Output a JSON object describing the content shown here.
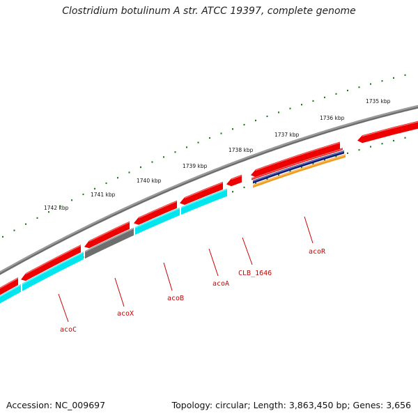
{
  "title": "Clostridium botulinum A str. ATCC 19397, complete genome",
  "footer": {
    "accession": "Accession: NC_009697",
    "summary": "Topology: circular; Length: 3,863,450 bp; Genes: 3,656"
  },
  "colors": {
    "backbone": "#808080",
    "ticks": "#1a7a1a",
    "cds": "#ee0000",
    "cyan": "#00e5ee",
    "gray_gene": "#6e6e6e",
    "navy": "#0b1a7a",
    "orange": "#f39a1a",
    "label": "#cc0000"
  },
  "tick_labels": [
    "1735 kbp",
    "1736 kbp",
    "1737 kbp",
    "1738 kbp",
    "1739 kbp",
    "1740 kbp",
    "1741 kbp",
    "1742 kbp"
  ],
  "gene_labels": [
    "acoC",
    "acoX",
    "acoB",
    "acoA",
    "CLB_1646",
    "acoR"
  ]
}
